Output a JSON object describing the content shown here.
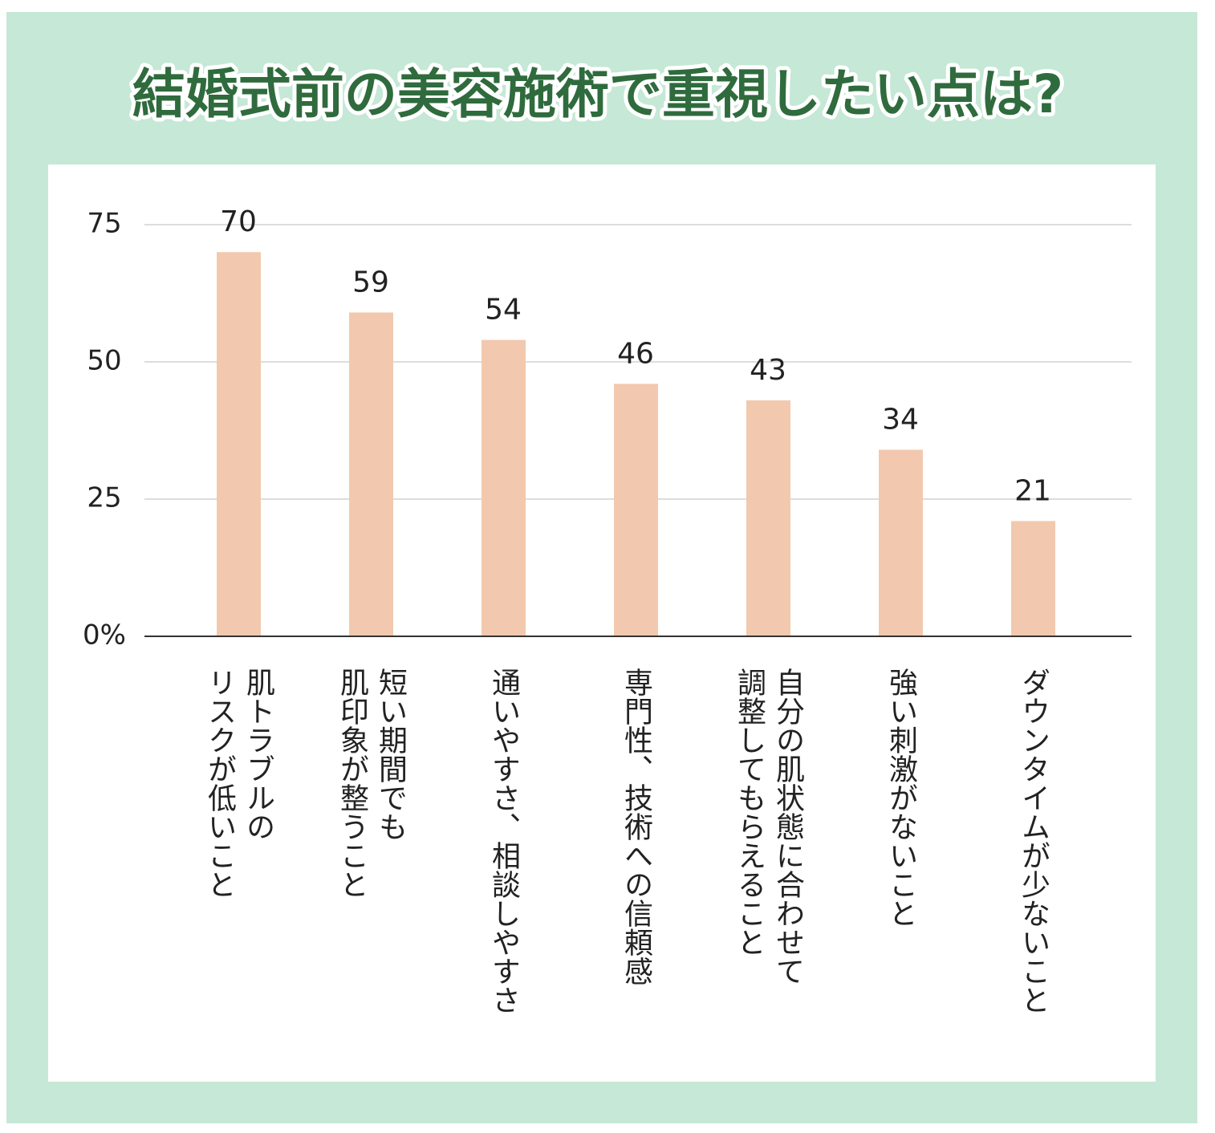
{
  "chart_data": {
    "type": "bar",
    "title": "結婚式前の美容施術で重視したい点は?",
    "categories": [
      "肌トラブルの\nリスクが低いこと",
      "短い期間でも\n肌印象が整うこと",
      "通いやすさ、相談しやすさ",
      "専門性、技術への信頼感",
      "自分の肌状態に合わせて\n調整してもらえること",
      "強い刺激がないこと",
      "ダウンタイムが少ないこと"
    ],
    "values": [
      70,
      59,
      54,
      46,
      43,
      34,
      21
    ],
    "color": "#f2c9ae",
    "ylim": [
      0,
      75
    ],
    "yticks": [
      {
        "value": 0,
        "label": "0%"
      },
      25,
      50,
      75
    ],
    "grid": true
  }
}
